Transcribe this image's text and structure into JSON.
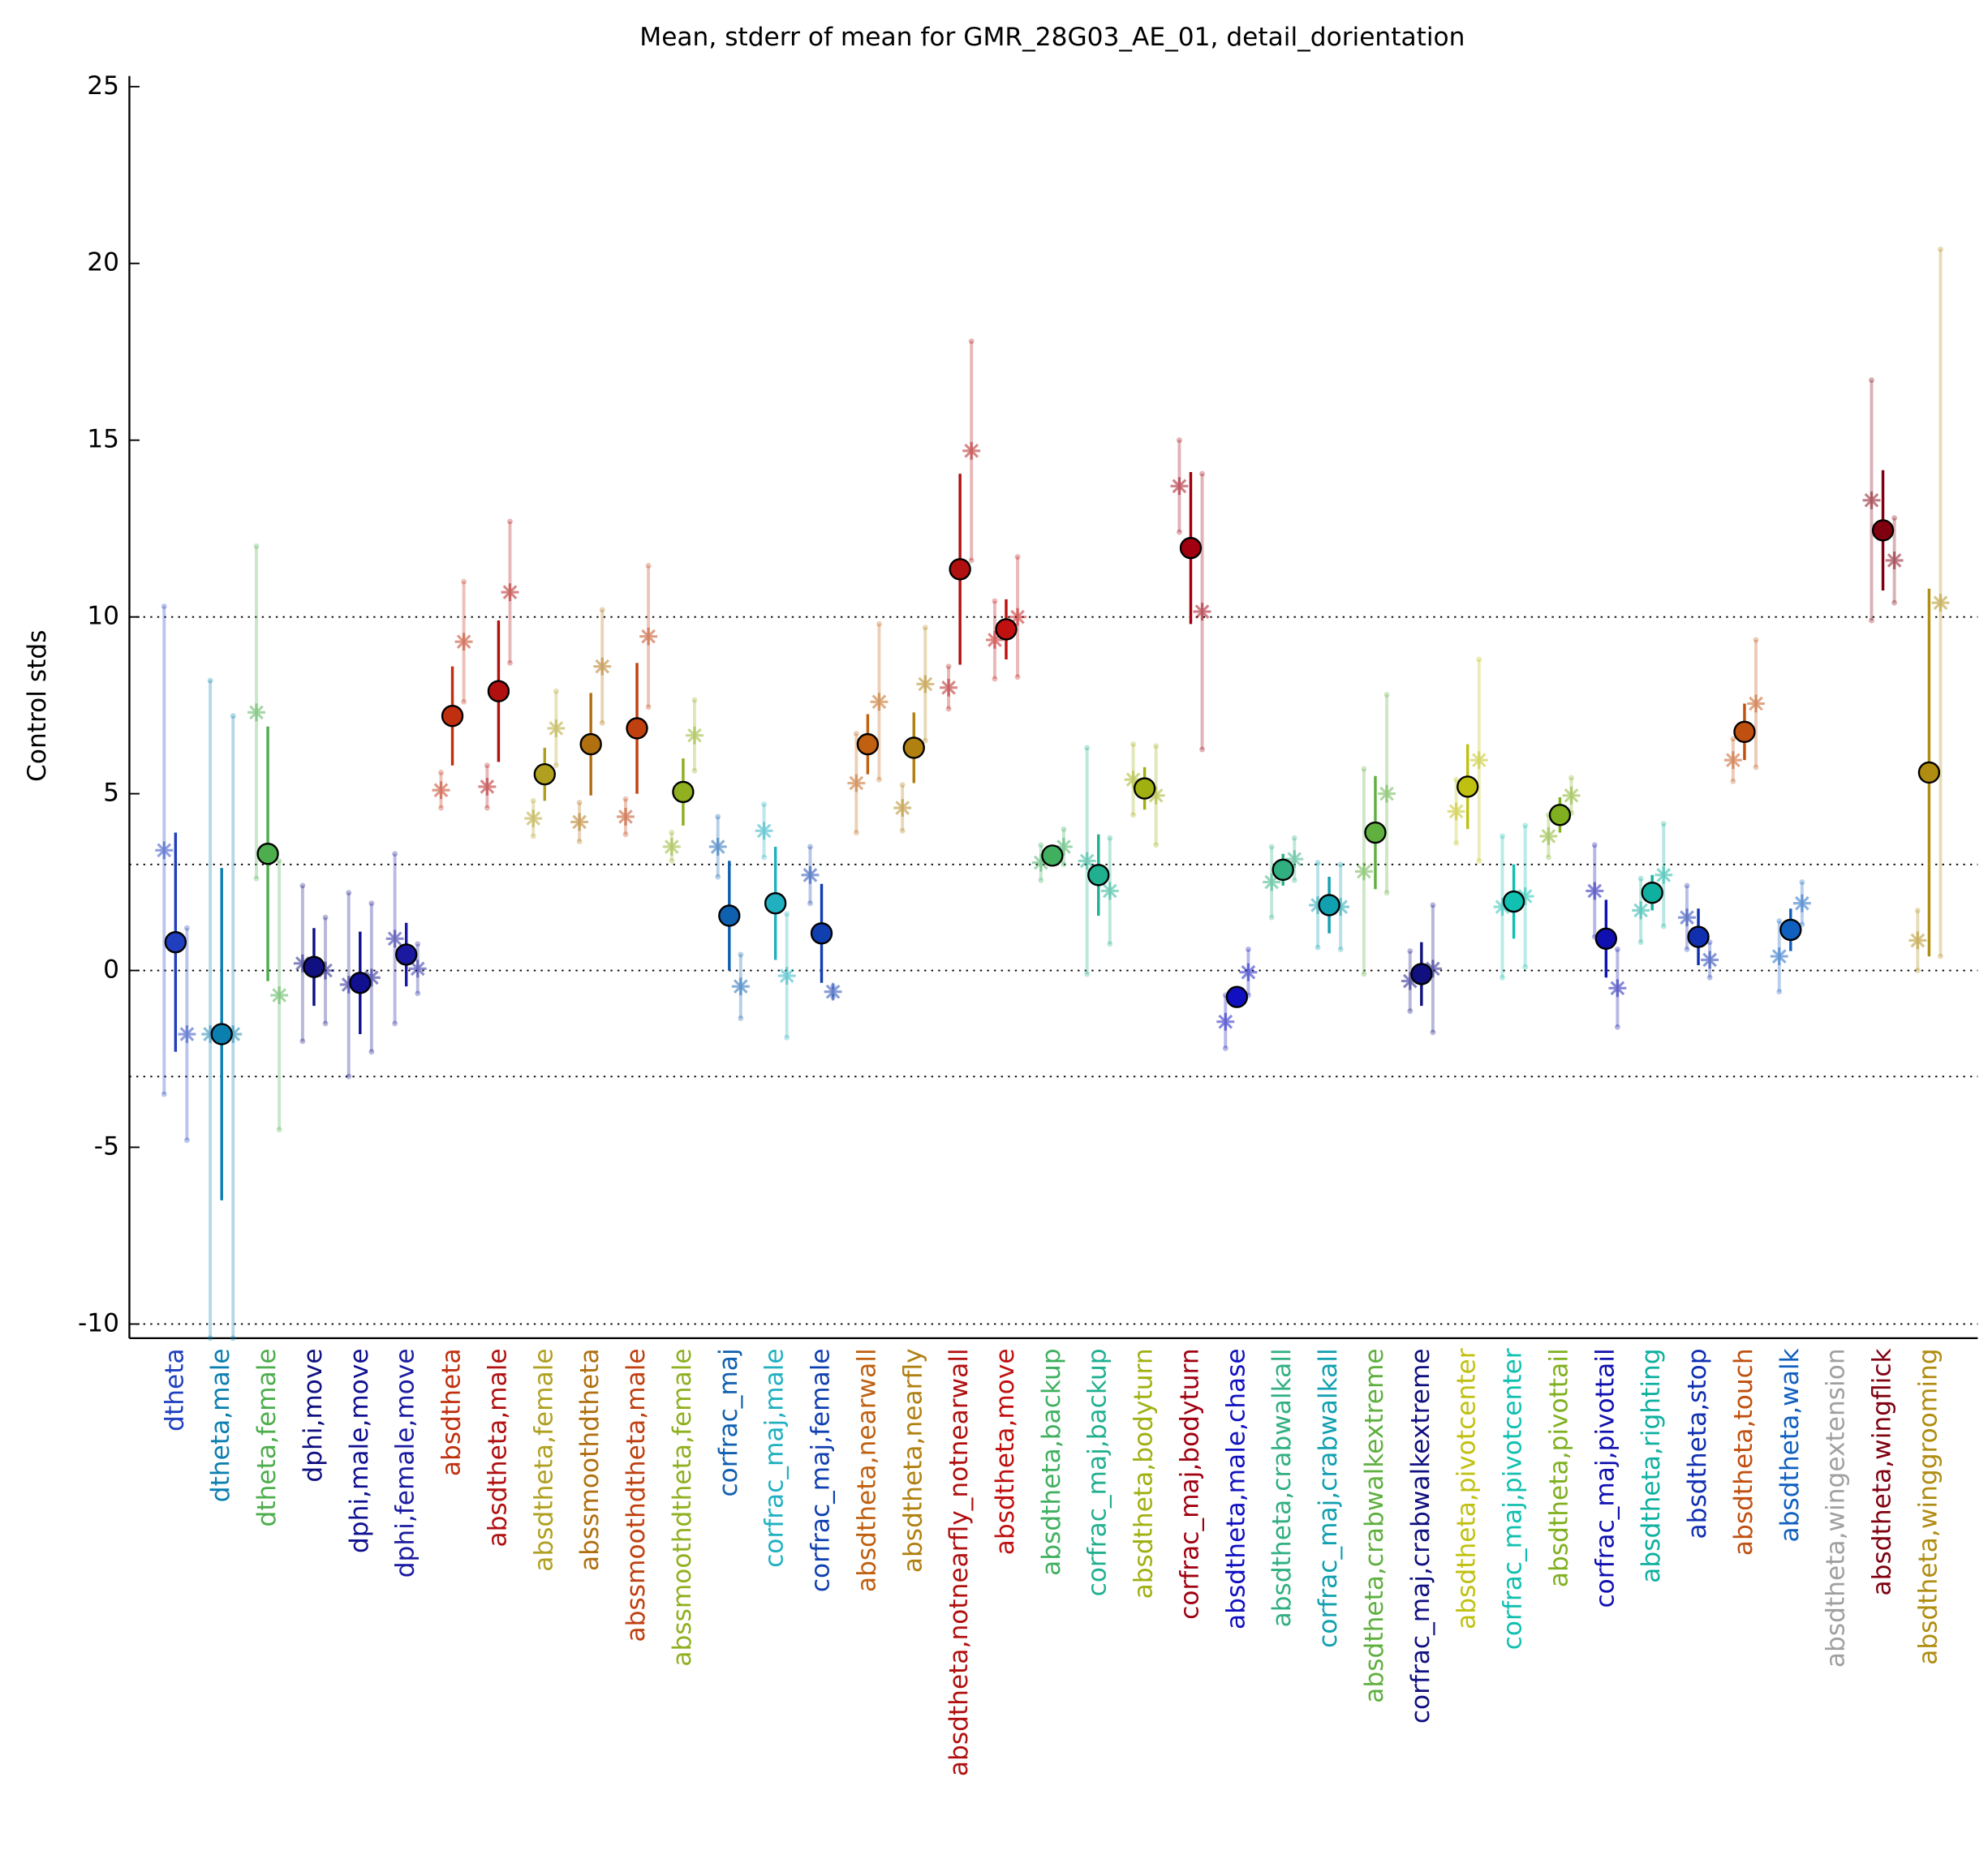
{
  "chart_data": {
    "type": "errorbar",
    "title": "Mean, stderr of mean for GMR_28G03_AE_01, detail_dorientation",
    "ylabel": "Control stds",
    "ylim": [
      -10.4,
      25.3
    ],
    "yticks": [
      -10,
      -5,
      0,
      5,
      10,
      15,
      20,
      25
    ],
    "reference_lines": [
      -10,
      -3,
      0,
      3,
      10
    ],
    "categories": [
      "dtheta",
      "dtheta,male",
      "dtheta,female",
      "dphi,move",
      "dphi,male,move",
      "dphi,female,move",
      "absdtheta",
      "absdtheta,male",
      "absdtheta,female",
      "abssmoothdtheta",
      "abssmoothdtheta,male",
      "abssmoothdtheta,female",
      "corfrac_maj",
      "corfrac_maj,male",
      "corfrac_maj,female",
      "absdtheta,nearwall",
      "absdtheta,nearfly",
      "absdtheta,notnearfly_notnearwall",
      "absdtheta,move",
      "absdtheta,backup",
      "corfrac_maj,backup",
      "absdtheta,bodyturn",
      "corfrac_maj,bodyturn",
      "absdtheta,male,chase",
      "absdtheta,crabwalkall",
      "corfrac_maj,crabwalkall",
      "absdtheta,crabwalkextreme",
      "corfrac_maj,crabwalkextreme",
      "absdtheta,pivotcenter",
      "corfrac_maj,pivotcenter",
      "absdtheta,pivottail",
      "corfrac_maj,pivottail",
      "absdtheta,righting",
      "absdtheta,stop",
      "absdtheta,touch",
      "absdtheta,walk",
      "absdtheta,wingextension",
      "absdtheta,wingflick",
      "absdtheta,winggrooming"
    ],
    "colors": [
      "#1f3fbf",
      "#0a7fb0",
      "#4cae4c",
      "#101080",
      "#101090",
      "#1a1aa0",
      "#c03010",
      "#b01010",
      "#b0a020",
      "#b07010",
      "#c04010",
      "#90b020",
      "#1060b0",
      "#20b0c0",
      "#1040b0",
      "#c06010",
      "#b08010",
      "#b01010",
      "#c01010",
      "#40b060",
      "#20b090",
      "#a0b010",
      "#a00010",
      "#1010c0",
      "#30b080",
      "#10a0b0",
      "#60b040",
      "#101080",
      "#c0c010",
      "#10c0b0",
      "#80b020",
      "#1010b0",
      "#10b0a0",
      "#1030b0",
      "#c05010",
      "#1060c0",
      "#a0a0a0",
      "#800010",
      "#b08c10"
    ],
    "series": [
      {
        "marker": "circle",
        "values": [
          0.8,
          -1.8,
          3.3,
          0.1,
          -0.35,
          0.45,
          7.2,
          7.9,
          5.55,
          6.4,
          6.85,
          5.05,
          1.55,
          1.9,
          1.05,
          6.4,
          6.3,
          11.35,
          9.65,
          3.25,
          2.7,
          5.15,
          11.95,
          -0.75,
          2.85,
          1.85,
          3.9,
          -0.1,
          5.2,
          1.95,
          4.4,
          0.9,
          2.2,
          0.95,
          6.75,
          1.15,
          null,
          12.45,
          5.6
        ],
        "errors": [
          3.1,
          4.7,
          3.6,
          1.1,
          1.45,
          0.9,
          1.4,
          2.0,
          0.75,
          1.45,
          1.85,
          0.95,
          1.55,
          1.6,
          1.4,
          0.85,
          1.0,
          2.7,
          0.85,
          0.25,
          1.15,
          0.6,
          2.15,
          0.25,
          0.45,
          0.8,
          1.6,
          0.9,
          1.2,
          1.05,
          0.5,
          1.1,
          0.5,
          0.8,
          0.8,
          0.6,
          null,
          1.7,
          5.2
        ]
      },
      {
        "marker": "star",
        "values": [
          3.4,
          -1.8,
          7.3,
          0.2,
          -0.4,
          0.9,
          5.1,
          5.2,
          4.3,
          4.2,
          4.35,
          3.5,
          3.5,
          3.95,
          2.7,
          5.3,
          4.6,
          8.0,
          9.35,
          3.05,
          3.1,
          5.4,
          13.7,
          -1.45,
          2.5,
          1.85,
          2.8,
          -0.3,
          4.5,
          1.8,
          3.8,
          2.25,
          1.7,
          1.5,
          5.95,
          0.4,
          null,
          13.3,
          0.85
        ],
        "errors": [
          6.9,
          10.0,
          4.7,
          2.2,
          2.6,
          2.4,
          0.5,
          0.6,
          0.5,
          0.55,
          0.5,
          0.4,
          0.85,
          0.75,
          0.8,
          1.4,
          0.65,
          0.6,
          1.1,
          0.5,
          3.2,
          1.0,
          1.3,
          0.75,
          1.0,
          1.2,
          2.9,
          0.85,
          0.9,
          2.0,
          0.6,
          1.3,
          0.9,
          0.9,
          0.6,
          1.0,
          null,
          3.4,
          0.85
        ]
      },
      {
        "marker": "star",
        "values": [
          -1.8,
          -1.8,
          -0.7,
          0.0,
          -0.2,
          0.05,
          9.3,
          10.7,
          6.85,
          8.6,
          9.45,
          6.65,
          -0.45,
          -0.15,
          -0.6,
          7.6,
          8.1,
          14.7,
          10.0,
          3.5,
          2.25,
          4.95,
          10.15,
          -0.05,
          3.15,
          1.8,
          5.0,
          0.05,
          5.95,
          2.1,
          4.95,
          -0.5,
          2.7,
          0.3,
          7.55,
          1.9,
          null,
          11.6,
          10.4
        ],
        "errors": [
          3.0,
          9.0,
          3.8,
          1.5,
          2.1,
          0.7,
          1.7,
          2.0,
          1.05,
          1.6,
          2.0,
          1.0,
          0.9,
          1.75,
          0.15,
          2.2,
          1.6,
          3.1,
          1.7,
          0.5,
          1.5,
          1.4,
          3.9,
          0.65,
          0.6,
          1.2,
          2.8,
          1.8,
          2.85,
          2.0,
          0.5,
          1.1,
          1.45,
          0.5,
          1.8,
          0.6,
          null,
          1.2,
          10.0
        ]
      }
    ]
  }
}
